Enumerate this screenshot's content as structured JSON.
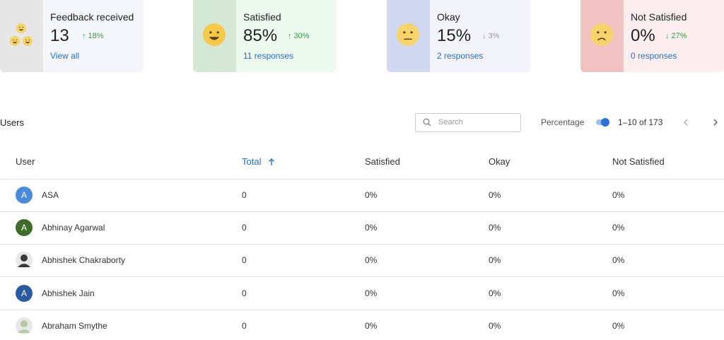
{
  "cards": [
    {
      "title": "Feedback received",
      "value": "13",
      "change": "↑ 18%",
      "link": "View all"
    },
    {
      "title": "Satisfied",
      "value": "85%",
      "change": "↑ 30%",
      "link": "11 responses"
    },
    {
      "title": "Okay",
      "value": "15%",
      "change": "↓ 3%",
      "link": "2 responses"
    },
    {
      "title": "Not Satisfied",
      "value": "0%",
      "change": "↓ 27%",
      "link": "0 responses"
    }
  ],
  "table": {
    "title": "Users",
    "search_placeholder": "Search",
    "toggle_label": "Percentage",
    "pagination": "1–10 of 173",
    "columns": [
      "User",
      "Total",
      "Satisfied",
      "Okay",
      "Not Satisfied"
    ],
    "rows": [
      {
        "avatar": "A",
        "user": "ASA",
        "total": "0",
        "satisfied": "0%",
        "okay": "0%",
        "not_satisfied": "0%"
      },
      {
        "avatar": "A",
        "user": "Abhinay Agarwal",
        "total": "0",
        "satisfied": "0%",
        "okay": "0%",
        "not_satisfied": "0%"
      },
      {
        "user": "Abhishek Chakraborty",
        "total": "0",
        "satisfied": "0%",
        "okay": "0%",
        "not_satisfied": "0%"
      },
      {
        "avatar": "A",
        "user": "Abhishek Jain",
        "total": "0",
        "satisfied": "0%",
        "okay": "0%",
        "not_satisfied": "0%"
      },
      {
        "user": "Abraham Smythe",
        "total": "0",
        "satisfied": "0%",
        "okay": "0%",
        "not_satisfied": "0%"
      }
    ]
  }
}
